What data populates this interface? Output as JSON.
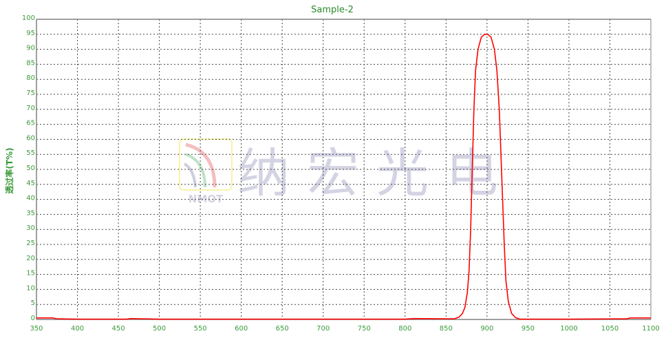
{
  "chart_data": {
    "type": "line",
    "title": "Sample-2",
    "xlabel": "",
    "ylabel": "透过率(T%)",
    "xlim": [
      350,
      1100
    ],
    "ylim": [
      0,
      100
    ],
    "xticks": [
      350,
      400,
      450,
      500,
      550,
      600,
      650,
      700,
      750,
      800,
      850,
      900,
      950,
      1000,
      1050,
      1100
    ],
    "yticks": [
      0,
      5,
      10,
      15,
      20,
      25,
      30,
      35,
      40,
      45,
      50,
      55,
      60,
      65,
      70,
      75,
      80,
      85,
      90,
      95,
      100
    ],
    "grid": true,
    "series": [
      {
        "color": "#ff0000",
        "x": [
          350,
          370,
          375,
          400,
          460,
          465,
          500,
          600,
          800,
          810,
          860,
          866,
          870,
          873,
          876,
          878,
          880,
          882,
          884,
          886,
          889,
          893,
          897,
          901,
          905,
          909,
          912,
          915,
          917,
          919,
          921,
          923,
          926,
          930,
          935,
          940,
          1000,
          1070,
          1075,
          1100
        ],
        "y": [
          0.5,
          0.5,
          0.2,
          0.1,
          0.1,
          0.3,
          0.1,
          0.1,
          0.1,
          0.3,
          0.2,
          0.8,
          2,
          4,
          9,
          16,
          30,
          50,
          70,
          83,
          90,
          94,
          95,
          95,
          94,
          90,
          83,
          70,
          55,
          40,
          25,
          13,
          6,
          2,
          0.6,
          0.1,
          0.1,
          0.2,
          0.5,
          0.5
        ]
      }
    ],
    "colors": {
      "axis_text": "#3a9a3a",
      "title": "#2a8a2a",
      "grid": "#444444",
      "axis": "#808080"
    },
    "watermark": {
      "logo_text": "NMOT",
      "text": "纳宏光电"
    }
  }
}
